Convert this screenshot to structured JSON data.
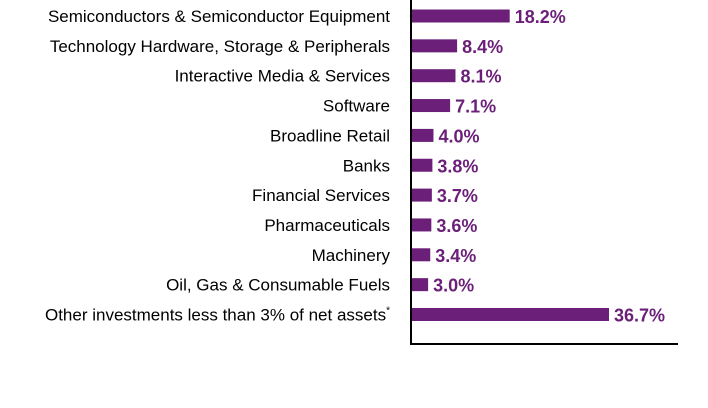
{
  "chart_data": {
    "type": "bar",
    "orientation": "horizontal",
    "categories": [
      "Semiconductors & Semiconductor Equipment",
      "Technology Hardware, Storage & Peripherals",
      "Interactive Media & Services",
      "Software",
      "Broadline Retail",
      "Banks",
      "Financial Services",
      "Pharmaceuticals",
      "Machinery",
      "Oil, Gas & Consumable Fuels",
      "Other investments less than 3% of net assets"
    ],
    "category_footnotes": [
      "",
      "",
      "",
      "",
      "",
      "",
      "",
      "",
      "",
      "",
      "*"
    ],
    "values": [
      18.2,
      8.4,
      8.1,
      7.1,
      4.0,
      3.8,
      3.7,
      3.6,
      3.4,
      3.0,
      36.7
    ],
    "value_labels": [
      "18.2%",
      "8.4%",
      "8.1%",
      "7.1%",
      "4.0%",
      "3.8%",
      "3.7%",
      "3.6%",
      "3.4%",
      "3.0%",
      "36.7%"
    ],
    "xlim": [
      0,
      50
    ],
    "grid": false,
    "legend": "none",
    "bar_color": "#6b1f78",
    "label_color": "#6b1f78",
    "axis_color": "#000000"
  }
}
